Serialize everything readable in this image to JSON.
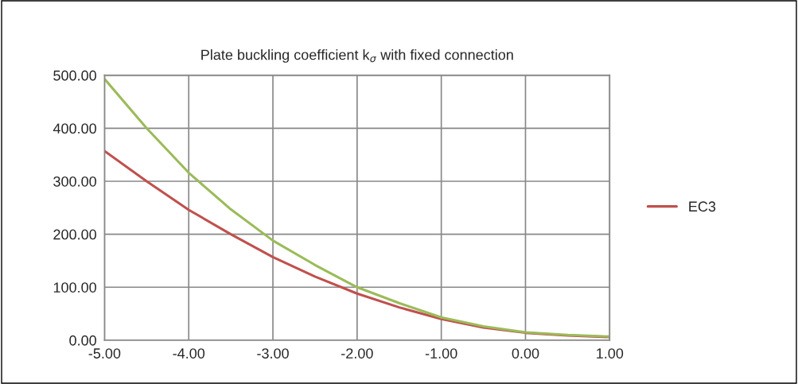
{
  "chart_data": {
    "type": "line",
    "title": "Plate buckling coefficient k$_{σ}$ with fixed connection",
    "x": [
      -5,
      -4.5,
      -4,
      -3.5,
      -3,
      -2.5,
      -2,
      -1.5,
      -1,
      -0.5,
      0,
      0.5,
      1
    ],
    "series": [
      {
        "name": "EC3",
        "color": "#c0504d",
        "values": [
          357,
          300,
          246,
          200,
          157,
          120,
          88,
          62,
          40,
          24,
          14,
          9,
          6
        ]
      },
      {
        "color": "#9bbb59",
        "values": [
          493,
          400,
          316,
          247,
          188,
          142,
          100,
          70,
          43,
          26,
          15,
          10,
          7
        ]
      }
    ],
    "xlim": [
      -5,
      1
    ],
    "xticks": [
      {
        "value": -5,
        "label": "-5.00"
      },
      {
        "value": -4,
        "label": "-4.00"
      },
      {
        "value": -3,
        "label": "-3.00"
      },
      {
        "value": -2,
        "label": "-2.00"
      },
      {
        "value": -1,
        "label": "-1.00"
      },
      {
        "value": 0,
        "label": "0.00"
      },
      {
        "value": 1,
        "label": "1.00"
      }
    ],
    "ylim": [
      0,
      500
    ],
    "yticks": [
      {
        "value": 0,
        "label": "0.00"
      },
      {
        "value": 100,
        "label": "100.00"
      },
      {
        "value": 200,
        "label": "200.00"
      },
      {
        "value": 300,
        "label": "300.00"
      },
      {
        "value": 400,
        "label": "400.00"
      },
      {
        "value": 500,
        "label": "500.00"
      }
    ],
    "grid": true,
    "legend": "right",
    "marker": "none",
    "line_style": "solid"
  }
}
